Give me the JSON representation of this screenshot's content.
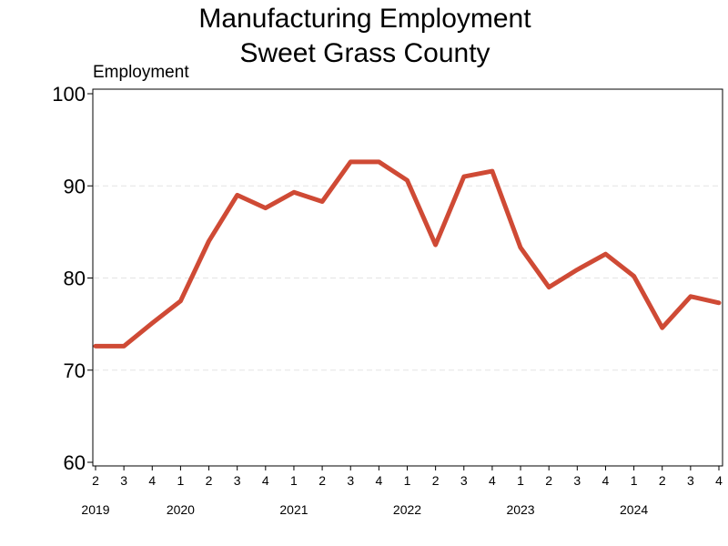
{
  "chart_data": {
    "type": "line",
    "title_lines": [
      "Manufacturing Employment",
      "Sweet Grass County"
    ],
    "ylabel": "Employment",
    "xlabel": "",
    "ylim": [
      60,
      100
    ],
    "yticks": [
      "60",
      "70",
      "80",
      "90",
      "100"
    ],
    "grid": "horizontal dashed",
    "legend": "none",
    "colors": {
      "line": "#cf4a35",
      "grid": "#e3e3e3",
      "axis": "#000000"
    },
    "quarter_labels": [
      "2",
      "3",
      "4",
      "1",
      "2",
      "3",
      "4",
      "1",
      "2",
      "3",
      "4",
      "1",
      "2",
      "3",
      "4",
      "1",
      "2",
      "3",
      "4",
      "1",
      "2",
      "3",
      "4"
    ],
    "years": [
      {
        "label": "2019",
        "first_index": 0
      },
      {
        "label": "2020",
        "first_index": 3
      },
      {
        "label": "2021",
        "first_index": 7
      },
      {
        "label": "2022",
        "first_index": 11
      },
      {
        "label": "2023",
        "first_index": 15
      },
      {
        "label": "2024",
        "first_index": 19
      }
    ],
    "series": [
      {
        "values": [
          72.6,
          72.6,
          75.1,
          77.5,
          84.0,
          89.0,
          87.6,
          89.3,
          88.3,
          92.6,
          92.6,
          90.6,
          83.6,
          91.0,
          91.6,
          83.3,
          79.0,
          80.9,
          82.6,
          80.2,
          74.6,
          78.0,
          77.3
        ]
      }
    ]
  }
}
